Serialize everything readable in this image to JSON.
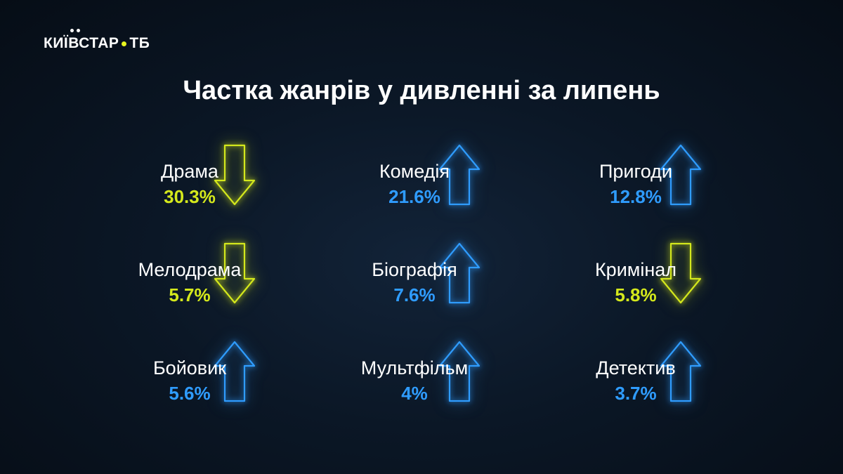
{
  "brand": {
    "logo_text": "КИЇВСТАР",
    "logo_suffix": "ТБ"
  },
  "title": "Частка жанрів у дивленні за липень",
  "colors": {
    "up": "#2f9cff",
    "down": "#d4e81c",
    "background": "#0b1726"
  },
  "genres": [
    {
      "label": "Драма",
      "value": "30.3%",
      "trend": "down",
      "arrow_icon": "arrow-down-icon"
    },
    {
      "label": "Комедія",
      "value": "21.6%",
      "trend": "up",
      "arrow_icon": "arrow-up-icon"
    },
    {
      "label": "Пригоди",
      "value": "12.8%",
      "trend": "up",
      "arrow_icon": "arrow-up-icon"
    },
    {
      "label": "Мелодрама",
      "value": "5.7%",
      "trend": "down",
      "arrow_icon": "arrow-down-icon"
    },
    {
      "label": "Біографія",
      "value": "7.6%",
      "trend": "up",
      "arrow_icon": "arrow-up-icon"
    },
    {
      "label": "Кримінал",
      "value": "5.8%",
      "trend": "down",
      "arrow_icon": "arrow-down-icon"
    },
    {
      "label": "Бойовик",
      "value": "5.6%",
      "trend": "up",
      "arrow_icon": "arrow-up-icon"
    },
    {
      "label": "Мультфільм",
      "value": "4%",
      "trend": "up",
      "arrow_icon": "arrow-up-icon"
    },
    {
      "label": "Детектив",
      "value": "3.7%",
      "trend": "up",
      "arrow_icon": "arrow-up-icon"
    }
  ]
}
